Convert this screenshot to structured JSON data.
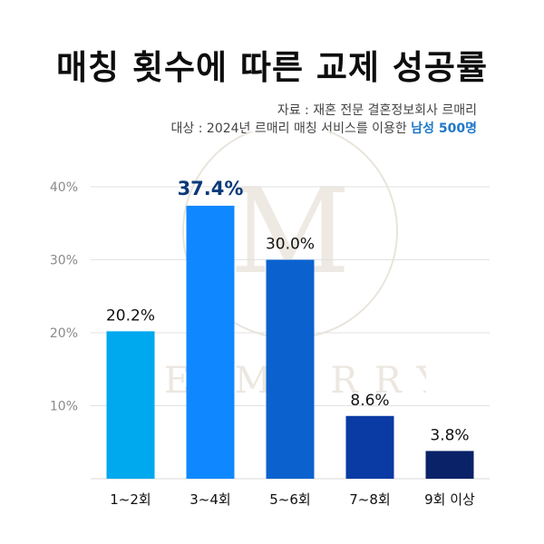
{
  "title": "매칭 횟수에 따른 교제 성공률",
  "source_line": "자료 : 재혼 전문 결혼정보회사 르매리",
  "target_prefix": "대상 : 2024년 르매리 매칭 서비스를 이용한 ",
  "target_highlight": "남성 500명",
  "watermark_text": "LE MARRY",
  "colors": {
    "highlight": "#1f78c8",
    "bars": [
      "#00a8ee",
      "#0f88ff",
      "#0b62cf",
      "#0a3aa3",
      "#0a2268"
    ]
  },
  "chart_data": {
    "type": "bar",
    "categories": [
      "1~2회",
      "3~4회",
      "5~6회",
      "7~8회",
      "9회 이상"
    ],
    "values": [
      20.2,
      37.4,
      30.0,
      8.6,
      3.8
    ],
    "data_labels": [
      "20.2%",
      "37.4%",
      "30.0%",
      "8.6%",
      "3.8%"
    ],
    "yticks": [
      "10%",
      "20%",
      "30%",
      "40%"
    ],
    "ytick_values": [
      10,
      20,
      30,
      40
    ],
    "ylim": [
      0,
      40
    ],
    "grid": true,
    "title": "매칭 횟수에 따른 교제 성공률",
    "xlabel": "",
    "ylabel": ""
  }
}
